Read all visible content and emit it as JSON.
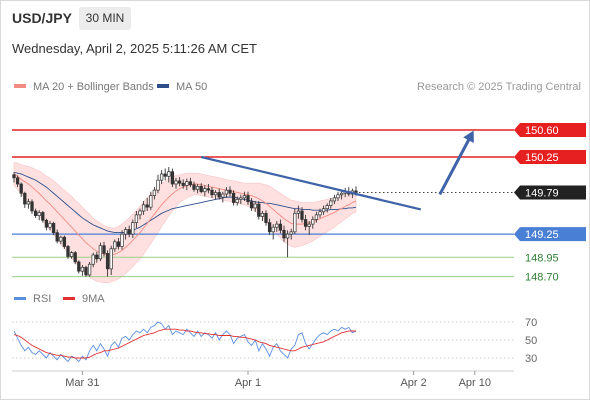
{
  "header": {
    "symbol": "USD/JPY",
    "interval": "30 MIN",
    "datetime": "Wednesday, April 2, 2025 5:11:26 AM CET"
  },
  "colors": {
    "bollinger_fill": "#ffe0e0",
    "ma20": "#f28b82",
    "ma50": "#2c4f8c",
    "resistance": "#e62020",
    "support_blue": "#4a7fd6",
    "support_green": "#9ccf87",
    "trendline": "#3f63a8",
    "candle": "#333333",
    "rsi": "#5a8fe0",
    "rsi_ma": "#e03030",
    "current_price_bg": "#222222"
  },
  "chart_data": {
    "type": "candlestick",
    "legend": [
      {
        "name": "MA 20 + Bollinger Bands",
        "color": "#f28b82"
      },
      {
        "name": "MA 50",
        "color": "#2c4f8c"
      }
    ],
    "credit": "Research © 2025 Trading Central",
    "x_ticks": [
      {
        "label": "Mar 31",
        "index": 19
      },
      {
        "label": "Apr 1",
        "index": 65
      },
      {
        "label": "Apr 2",
        "index": 111
      },
      {
        "label": "Apr 10",
        "index": 128
      }
    ],
    "ylim": [
      148.55,
      150.78
    ],
    "levels": [
      {
        "price": 150.6,
        "label": "150.60",
        "kind": "resistance"
      },
      {
        "price": 150.25,
        "label": "150.25",
        "kind": "resistance"
      },
      {
        "price": 149.25,
        "label": "149.25",
        "kind": "support_blue"
      },
      {
        "price": 148.95,
        "label": "148.95",
        "kind": "support_green"
      },
      {
        "price": 148.7,
        "label": "148.70",
        "kind": "support_green"
      }
    ],
    "current_price": {
      "value": 149.79,
      "label": "149.79"
    },
    "trendline": {
      "from": {
        "index": 52,
        "price": 150.25
      },
      "to": {
        "index": 113,
        "price": 149.57
      }
    },
    "projection_arrow": {
      "from": {
        "index": 118,
        "price": 149.79
      },
      "to": {
        "index": 128,
        "price": 150.6
      }
    },
    "candles": [
      [
        150.02,
        150.05,
        149.92,
        149.98
      ],
      [
        149.98,
        150.01,
        149.86,
        149.9
      ],
      [
        149.9,
        149.92,
        149.73,
        149.78
      ],
      [
        149.78,
        149.8,
        149.59,
        149.64
      ],
      [
        149.64,
        149.71,
        149.58,
        149.67
      ],
      [
        149.67,
        149.7,
        149.51,
        149.55
      ],
      [
        149.55,
        149.58,
        149.46,
        149.49
      ],
      [
        149.49,
        149.56,
        149.43,
        149.53
      ],
      [
        149.53,
        149.55,
        149.4,
        149.43
      ],
      [
        149.43,
        149.45,
        149.3,
        149.34
      ],
      [
        149.34,
        149.42,
        149.3,
        149.39
      ],
      [
        149.39,
        149.41,
        149.24,
        149.27
      ],
      [
        149.27,
        149.31,
        149.13,
        149.16
      ],
      [
        149.16,
        149.23,
        149.12,
        149.21
      ],
      [
        149.21,
        149.23,
        149.06,
        149.09
      ],
      [
        149.09,
        149.11,
        148.93,
        148.96
      ],
      [
        148.96,
        149.03,
        148.93,
        149.01
      ],
      [
        149.01,
        149.03,
        148.86,
        148.89
      ],
      [
        148.89,
        148.91,
        148.74,
        148.77
      ],
      [
        148.77,
        148.85,
        148.71,
        148.82
      ],
      [
        148.82,
        148.84,
        148.7,
        148.72
      ],
      [
        148.72,
        148.89,
        148.7,
        148.86
      ],
      [
        148.86,
        149.01,
        148.82,
        148.98
      ],
      [
        148.98,
        149.02,
        148.88,
        148.93
      ],
      [
        148.93,
        149.14,
        148.9,
        149.1
      ],
      [
        149.1,
        149.15,
        148.96,
        149.0
      ],
      [
        149.0,
        149.04,
        148.7,
        148.8
      ],
      [
        148.8,
        149.1,
        148.72,
        149.06
      ],
      [
        149.06,
        149.18,
        149.02,
        149.15
      ],
      [
        149.15,
        149.2,
        149.05,
        149.09
      ],
      [
        149.09,
        149.3,
        149.05,
        149.25
      ],
      [
        149.25,
        149.34,
        149.18,
        149.31
      ],
      [
        149.31,
        149.36,
        149.21,
        149.25
      ],
      [
        149.25,
        149.44,
        149.2,
        149.4
      ],
      [
        149.4,
        149.55,
        149.33,
        149.5
      ],
      [
        149.5,
        149.58,
        149.44,
        149.55
      ],
      [
        149.55,
        149.68,
        149.5,
        149.63
      ],
      [
        149.63,
        149.72,
        149.55,
        149.6
      ],
      [
        149.6,
        149.8,
        149.56,
        149.75
      ],
      [
        149.75,
        149.86,
        149.7,
        149.82
      ],
      [
        149.82,
        150.02,
        149.78,
        149.95
      ],
      [
        149.95,
        150.08,
        149.9,
        150.03
      ],
      [
        150.03,
        150.1,
        149.95,
        150.0
      ],
      [
        150.0,
        150.12,
        149.92,
        150.06
      ],
      [
        150.06,
        150.1,
        149.86,
        149.9
      ],
      [
        149.9,
        149.98,
        149.84,
        149.94
      ],
      [
        149.94,
        149.99,
        149.87,
        149.91
      ],
      [
        149.91,
        149.96,
        149.84,
        149.88
      ],
      [
        149.88,
        149.97,
        149.82,
        149.93
      ],
      [
        149.93,
        149.98,
        149.86,
        149.89
      ],
      [
        149.89,
        149.93,
        149.8,
        149.83
      ],
      [
        149.83,
        149.9,
        149.78,
        149.87
      ],
      [
        149.87,
        149.91,
        149.78,
        149.8
      ],
      [
        149.8,
        149.88,
        149.74,
        149.84
      ],
      [
        149.84,
        149.9,
        149.78,
        149.82
      ],
      [
        149.82,
        149.86,
        149.72,
        149.76
      ],
      [
        149.76,
        149.82,
        149.7,
        149.79
      ],
      [
        149.79,
        149.84,
        149.7,
        149.73
      ],
      [
        149.73,
        149.8,
        149.66,
        149.77
      ],
      [
        149.77,
        149.86,
        149.72,
        149.82
      ],
      [
        149.82,
        149.87,
        149.74,
        149.78
      ],
      [
        149.78,
        149.82,
        149.62,
        149.66
      ],
      [
        149.66,
        149.74,
        149.62,
        149.7
      ],
      [
        149.7,
        149.76,
        149.64,
        149.72
      ],
      [
        149.72,
        149.8,
        149.68,
        149.75
      ],
      [
        149.75,
        149.8,
        149.63,
        149.67
      ],
      [
        149.67,
        149.72,
        149.55,
        149.59
      ],
      [
        149.59,
        149.68,
        149.54,
        149.64
      ],
      [
        149.64,
        149.68,
        149.44,
        149.48
      ],
      [
        149.48,
        149.55,
        149.42,
        149.52
      ],
      [
        149.52,
        149.56,
        149.36,
        149.4
      ],
      [
        149.4,
        149.45,
        149.24,
        149.28
      ],
      [
        149.28,
        149.38,
        149.18,
        149.34
      ],
      [
        149.34,
        149.42,
        149.28,
        149.38
      ],
      [
        149.38,
        149.44,
        149.26,
        149.3
      ],
      [
        149.3,
        149.36,
        149.15,
        149.2
      ],
      [
        149.2,
        149.3,
        148.95,
        149.25
      ],
      [
        149.25,
        149.32,
        149.18,
        149.28
      ],
      [
        149.28,
        149.58,
        149.25,
        149.52
      ],
      [
        149.52,
        149.62,
        149.45,
        149.55
      ],
      [
        149.55,
        149.6,
        149.4,
        149.44
      ],
      [
        149.44,
        149.5,
        149.3,
        149.35
      ],
      [
        149.35,
        149.42,
        149.24,
        149.38
      ],
      [
        149.38,
        149.48,
        149.32,
        149.44
      ],
      [
        149.44,
        149.54,
        149.4,
        149.5
      ],
      [
        149.5,
        149.58,
        149.46,
        149.54
      ],
      [
        149.54,
        149.62,
        149.5,
        149.58
      ],
      [
        149.58,
        149.65,
        149.53,
        149.62
      ],
      [
        149.62,
        149.72,
        149.58,
        149.68
      ],
      [
        149.68,
        149.76,
        149.64,
        149.72
      ],
      [
        149.72,
        149.8,
        149.68,
        149.76
      ],
      [
        149.76,
        149.82,
        149.7,
        149.78
      ],
      [
        149.78,
        149.85,
        149.73,
        149.8
      ],
      [
        149.8,
        149.86,
        149.74,
        149.77
      ],
      [
        149.77,
        149.84,
        149.72,
        149.81
      ],
      [
        149.81,
        149.87,
        149.75,
        149.79
      ]
    ],
    "ma20": [
      150.03,
      150.0,
      149.96,
      149.93,
      149.9,
      149.86,
      149.82,
      149.78,
      149.73,
      149.68,
      149.64,
      149.59,
      149.54,
      149.49,
      149.44,
      149.39,
      149.34,
      149.29,
      149.24,
      149.19,
      149.14,
      149.1,
      149.06,
      149.03,
      149.01,
      148.99,
      148.98,
      148.98,
      148.99,
      149.01,
      149.04,
      149.08,
      149.12,
      149.17,
      149.22,
      149.27,
      149.33,
      149.39,
      149.45,
      149.51,
      149.57,
      149.63,
      149.68,
      149.73,
      149.77,
      149.81,
      149.84,
      149.86,
      149.88,
      149.89,
      149.9,
      149.9,
      149.89,
      149.88,
      149.87,
      149.86,
      149.85,
      149.84,
      149.83,
      149.82,
      149.81,
      149.8,
      149.79,
      149.78,
      149.77,
      149.76,
      149.75,
      149.73,
      149.71,
      149.68,
      149.65,
      149.61,
      149.57,
      149.53,
      149.49,
      149.45,
      149.42,
      149.39,
      149.38,
      149.38,
      149.38,
      149.39,
      149.4,
      149.41,
      149.43,
      149.45,
      149.47,
      149.49,
      149.51,
      149.53,
      149.56,
      149.58,
      149.61,
      149.63,
      149.66,
      149.68
    ],
    "ma50": [
      150.05,
      150.04,
      150.03,
      150.01,
      149.99,
      149.97,
      149.95,
      149.92,
      149.89,
      149.86,
      149.82,
      149.78,
      149.74,
      149.7,
      149.66,
      149.62,
      149.58,
      149.54,
      149.5,
      149.46,
      149.43,
      149.4,
      149.37,
      149.35,
      149.33,
      149.31,
      149.29,
      149.28,
      149.27,
      149.27,
      149.27,
      149.27,
      149.28,
      149.3,
      149.32,
      149.34,
      149.37,
      149.4,
      149.43,
      149.46,
      149.49,
      149.52,
      149.54,
      149.56,
      149.58,
      149.59,
      149.6,
      149.61,
      149.62,
      149.63,
      149.64,
      149.65,
      149.66,
      149.67,
      149.68,
      149.69,
      149.7,
      149.71,
      149.72,
      149.73,
      149.73,
      149.73,
      149.72,
      149.71,
      149.7,
      149.69,
      149.68,
      149.67,
      149.66,
      149.66,
      149.65,
      149.65,
      149.64,
      149.63,
      149.62,
      149.61,
      149.6,
      149.59,
      149.58,
      149.58,
      149.57,
      149.57,
      149.57,
      149.56,
      149.56,
      149.56,
      149.56,
      149.56,
      149.57,
      149.57,
      149.57,
      149.58,
      149.58,
      149.59,
      149.59,
      149.6
    ],
    "bb_width": [
      0.15,
      0.17,
      0.19,
      0.21,
      0.23,
      0.25,
      0.27,
      0.29,
      0.31,
      0.32,
      0.34,
      0.35,
      0.36,
      0.37,
      0.38,
      0.39,
      0.4,
      0.4,
      0.41,
      0.41,
      0.41,
      0.41,
      0.4,
      0.39,
      0.38,
      0.37,
      0.36,
      0.35,
      0.34,
      0.34,
      0.34,
      0.34,
      0.34,
      0.34,
      0.34,
      0.34,
      0.34,
      0.33,
      0.32,
      0.31,
      0.3,
      0.28,
      0.26,
      0.24,
      0.22,
      0.2,
      0.18,
      0.17,
      0.16,
      0.15,
      0.14,
      0.14,
      0.14,
      0.14,
      0.14,
      0.14,
      0.14,
      0.14,
      0.14,
      0.14,
      0.14,
      0.14,
      0.14,
      0.14,
      0.14,
      0.15,
      0.16,
      0.18,
      0.2,
      0.22,
      0.24,
      0.26,
      0.27,
      0.28,
      0.29,
      0.3,
      0.3,
      0.3,
      0.3,
      0.29,
      0.28,
      0.27,
      0.26,
      0.25,
      0.24,
      0.23,
      0.22,
      0.21,
      0.2,
      0.19,
      0.18,
      0.17,
      0.16,
      0.15,
      0.14,
      0.14
    ],
    "rsi": {
      "legend": [
        {
          "name": "RSI",
          "color": "#5a8fe0"
        },
        {
          "name": "9MA",
          "color": "#e03030"
        }
      ],
      "ylim": [
        20,
        80
      ],
      "ticks": [
        {
          "value": 70,
          "label": "70"
        },
        {
          "value": 50,
          "label": "50"
        },
        {
          "value": 30,
          "label": "30"
        }
      ],
      "values": [
        60,
        52,
        44,
        38,
        42,
        36,
        34,
        38,
        34,
        30,
        36,
        32,
        28,
        34,
        30,
        26,
        32,
        30,
        26,
        32,
        28,
        38,
        44,
        38,
        46,
        40,
        32,
        44,
        48,
        42,
        52,
        54,
        50,
        56,
        60,
        58,
        62,
        58,
        64,
        66,
        70,
        68,
        62,
        66,
        56,
        60,
        58,
        56,
        62,
        58,
        54,
        60,
        54,
        58,
        56,
        52,
        58,
        50,
        56,
        60,
        56,
        46,
        52,
        54,
        56,
        48,
        44,
        50,
        38,
        46,
        40,
        32,
        42,
        46,
        38,
        34,
        30,
        40,
        44,
        56,
        58,
        46,
        40,
        46,
        52,
        56,
        58,
        56,
        60,
        62,
        60,
        64,
        62,
        64,
        58,
        60
      ],
      "ma9": [
        56,
        55,
        53,
        50,
        47,
        44,
        42,
        40,
        38,
        36,
        35,
        34,
        33,
        33,
        32,
        31,
        31,
        30,
        30,
        30,
        30,
        31,
        33,
        35,
        36,
        38,
        38,
        39,
        40,
        41,
        43,
        45,
        47,
        49,
        51,
        53,
        55,
        56,
        57,
        58,
        60,
        61,
        62,
        62,
        62,
        62,
        61,
        61,
        60,
        60,
        59,
        58,
        58,
        57,
        57,
        56,
        56,
        55,
        55,
        55,
        55,
        54,
        54,
        53,
        53,
        52,
        51,
        50,
        48,
        47,
        46,
        44,
        43,
        42,
        41,
        40,
        39,
        38,
        38,
        40,
        42,
        43,
        44,
        45,
        46,
        47,
        48,
        50,
        52,
        54,
        56,
        58,
        59,
        60,
        60,
        60
      ]
    }
  }
}
